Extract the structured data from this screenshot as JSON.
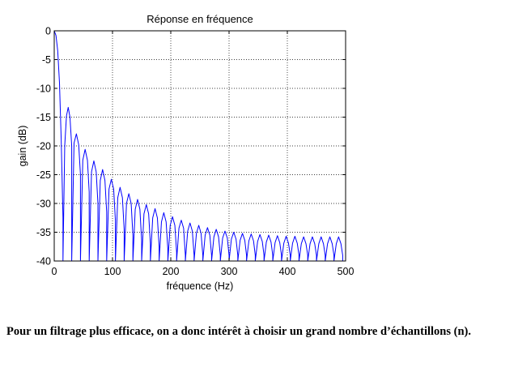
{
  "chart_data": {
    "type": "line",
    "title": "Réponse en fréquence",
    "xlabel": "fréquence (Hz)",
    "ylabel": "gain (dB)",
    "xlim": [
      0,
      500
    ],
    "ylim": [
      -40,
      0
    ],
    "xticks": [
      0,
      100,
      200,
      300,
      400,
      500
    ],
    "yticks": [
      0,
      -5,
      -10,
      -15,
      -20,
      -25,
      -30,
      -35,
      -40
    ],
    "grid": true,
    "line_color": "#0000ff",
    "series": [
      {
        "x": [
          0,
          3,
          6,
          9,
          12,
          15,
          15,
          18,
          21,
          24,
          27,
          30,
          30,
          34,
          38,
          42,
          45,
          45,
          49,
          53,
          57,
          60,
          60,
          64,
          68,
          72,
          75,
          75,
          79,
          83,
          87,
          90,
          90,
          94,
          98,
          102,
          105,
          105,
          109,
          113,
          117,
          120,
          120,
          124,
          128,
          132,
          135,
          135,
          139,
          143,
          147,
          150,
          150,
          154,
          158,
          162,
          165,
          165,
          169,
          173,
          177,
          180,
          180,
          184,
          188,
          192,
          195,
          195,
          199,
          203,
          207,
          210,
          210,
          214,
          218,
          222,
          225,
          225,
          229,
          233,
          237,
          240,
          240,
          244,
          248,
          252,
          255,
          255,
          259,
          263,
          267,
          270,
          270,
          274,
          278,
          282,
          285,
          285,
          289,
          293,
          297,
          300,
          300,
          304,
          308,
          312,
          315,
          315,
          319,
          323,
          327,
          330,
          330,
          334,
          338,
          342,
          345,
          345,
          349,
          353,
          357,
          360,
          360,
          364,
          368,
          372,
          375,
          375,
          379,
          383,
          387,
          390,
          390,
          394,
          398,
          402,
          405,
          405,
          409,
          413,
          417,
          420,
          420,
          424,
          428,
          432,
          435,
          435,
          439,
          443,
          447,
          450,
          450,
          454,
          458,
          462,
          465,
          465,
          469,
          473,
          477,
          480,
          480,
          484,
          488,
          492,
          495,
          495
        ],
        "y": [
          0,
          -0.8,
          -3.5,
          -9,
          -19,
          -32.5,
          -40,
          -20,
          -14.8,
          -13.3,
          -15,
          -20,
          -40,
          -19.5,
          -17.9,
          -19.8,
          -25,
          -40,
          -22.5,
          -20.6,
          -22.5,
          -28,
          -40,
          -24.5,
          -22.6,
          -24.5,
          -30,
          -40,
          -26,
          -24.1,
          -26,
          -31.5,
          -40,
          -27.5,
          -25.8,
          -27.5,
          -33,
          -40,
          -29,
          -27.2,
          -29,
          -34.5,
          -40,
          -30,
          -28.3,
          -30,
          -35.5,
          -40,
          -31,
          -29.3,
          -31,
          -36.5,
          -40,
          -31.8,
          -30.2,
          -31.8,
          -37,
          -40,
          -32.5,
          -30.9,
          -32.5,
          -37.5,
          -40,
          -33.2,
          -31.6,
          -33.2,
          -38,
          -40,
          -33.8,
          -32.3,
          -33.8,
          -38.5,
          -40,
          -34.3,
          -32.9,
          -34.3,
          -39,
          -40,
          -34.8,
          -33.4,
          -34.8,
          -39,
          -40,
          -35.2,
          -33.8,
          -35.2,
          -39,
          -40,
          -35.5,
          -34.2,
          -35.5,
          -39,
          -40,
          -35.8,
          -34.5,
          -35.8,
          -39,
          -40,
          -36,
          -34.8,
          -36,
          -39,
          -40,
          -36.2,
          -35,
          -36.2,
          -39,
          -40,
          -36.4,
          -35.2,
          -36.4,
          -39,
          -40,
          -36.5,
          -35.3,
          -36.5,
          -39,
          -40,
          -36.6,
          -35.4,
          -36.6,
          -39,
          -40,
          -36.7,
          -35.5,
          -36.7,
          -39,
          -40,
          -36.8,
          -35.6,
          -36.8,
          -39,
          -40,
          -36.9,
          -35.7,
          -36.9,
          -39,
          -40,
          -36.9,
          -35.7,
          -36.9,
          -39,
          -40,
          -37,
          -35.8,
          -37,
          -39,
          -40,
          -37,
          -35.8,
          -37,
          -39,
          -40,
          -37,
          -35.8,
          -37,
          -39,
          -40,
          -37,
          -35.8,
          -37,
          -39,
          -40,
          -37,
          -35.8,
          -37,
          -39,
          -40
        ]
      }
    ]
  },
  "caption": "Pour un filtrage plus efficace, on a donc intérêt à choisir un grand nombre d’échantillons (n)."
}
